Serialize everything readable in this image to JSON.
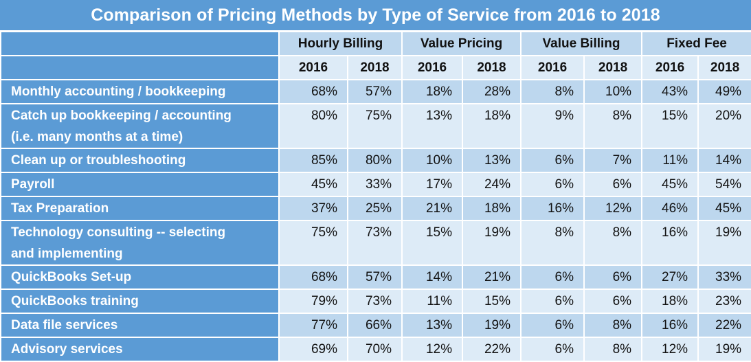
{
  "title": "Comparison of Pricing Methods by Type of Service from 2016 to 2018",
  "colors": {
    "header_blue": "#5b9bd5",
    "row_dark": "#bdd7ee",
    "row_light": "#ddebf7",
    "border": "#ffffff"
  },
  "groups": [
    "Hourly Billing",
    "Value Pricing",
    "Value Billing",
    "Fixed Fee"
  ],
  "years": [
    "2016",
    "2018",
    "2016",
    "2018",
    "2016",
    "2018",
    "2016",
    "2018"
  ],
  "rows": [
    {
      "label": "Monthly accounting / bookkeeping",
      "values": [
        "68%",
        "57%",
        "18%",
        "28%",
        "8%",
        "10%",
        "43%",
        "49%"
      ]
    },
    {
      "label": "Catch up bookkeeping / accounting (i.e. many months at a time)",
      "label_lines": [
        "Catch up bookkeeping / accounting",
        "(i.e. many months at a time)"
      ],
      "values": [
        "80%",
        "75%",
        "13%",
        "18%",
        "9%",
        "8%",
        "15%",
        "20%"
      ]
    },
    {
      "label": "Clean up or troubleshooting",
      "values": [
        "85%",
        "80%",
        "10%",
        "13%",
        "6%",
        "7%",
        "11%",
        "14%"
      ]
    },
    {
      "label": "Payroll",
      "values": [
        "45%",
        "33%",
        "17%",
        "24%",
        "6%",
        "6%",
        "45%",
        "54%"
      ]
    },
    {
      "label": "Tax Preparation",
      "values": [
        "37%",
        "25%",
        "21%",
        "18%",
        "16%",
        "12%",
        "46%",
        "45%"
      ]
    },
    {
      "label": "Technology consulting -- selecting and implementing",
      "label_lines": [
        "Technology consulting -- selecting",
        "and implementing"
      ],
      "values": [
        "75%",
        "73%",
        "15%",
        "19%",
        "8%",
        "8%",
        "16%",
        "19%"
      ]
    },
    {
      "label": "QuickBooks Set-up",
      "values": [
        "68%",
        "57%",
        "14%",
        "21%",
        "6%",
        "6%",
        "27%",
        "33%"
      ]
    },
    {
      "label": "QuickBooks training",
      "values": [
        "79%",
        "73%",
        "11%",
        "15%",
        "6%",
        "6%",
        "18%",
        "23%"
      ]
    },
    {
      "label": "Data file services",
      "values": [
        "77%",
        "66%",
        "13%",
        "19%",
        "6%",
        "8%",
        "16%",
        "22%"
      ]
    },
    {
      "label": "Advisory services",
      "values": [
        "69%",
        "70%",
        "12%",
        "22%",
        "6%",
        "8%",
        "12%",
        "19%"
      ]
    }
  ]
}
